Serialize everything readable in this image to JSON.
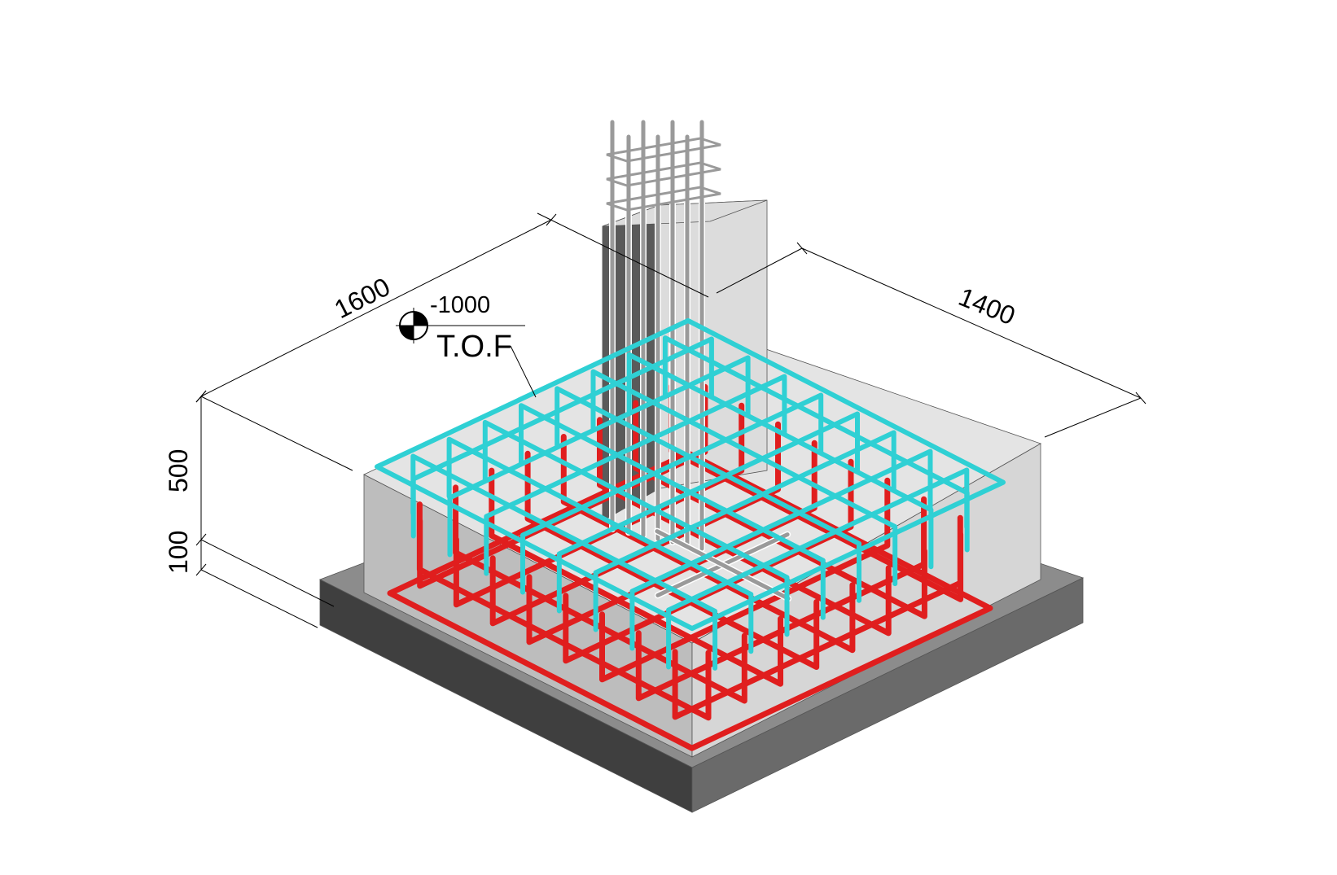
{
  "dimensions": {
    "length": "1600",
    "width": "1400",
    "footing_height": "500",
    "blinding_height": "100"
  },
  "level_marker": {
    "elevation": "-1000",
    "label": "T.O.F"
  },
  "colors": {
    "background": "#ffffff",
    "blinding_top": "#8c8c8c",
    "blinding_left": "#3f3f3f",
    "blinding_right": "#6a6a6a",
    "footing_top": "#e4e4e4",
    "footing_left": "#bdbdbd",
    "footing_right": "#d6d6d6",
    "column_front": "#5a5a5a",
    "column_side": "#dcdcdc",
    "bottom_rebar": "#e01e1e",
    "top_rebar": "#2fd0d4",
    "column_rebar": "#9a9a9a",
    "dimension_line": "#000000"
  },
  "legend": []
}
